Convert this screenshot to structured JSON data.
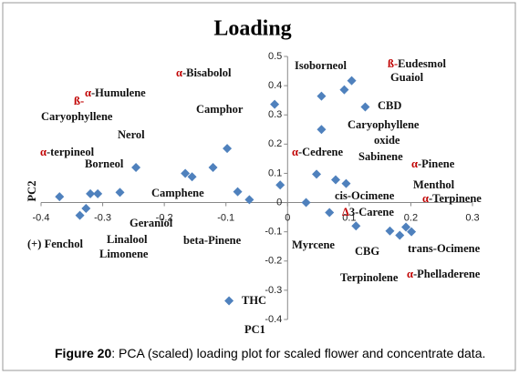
{
  "chart_data": {
    "type": "scatter",
    "title": "Loading",
    "xlabel": "PC1",
    "ylabel": "PC2",
    "x": [
      -0.37,
      -0.337,
      -0.327,
      -0.32,
      -0.308,
      -0.272,
      -0.246,
      -0.166,
      -0.155,
      -0.121,
      -0.098,
      -0.081,
      -0.062,
      -0.021,
      -0.012,
      -0.095,
      0.03,
      0.047,
      0.055,
      0.055,
      0.068,
      0.078,
      0.092,
      0.095,
      0.104,
      0.111,
      0.126,
      0.166,
      0.182,
      0.192,
      0.201
    ],
    "series": [
      {
        "color": "#4f81bd",
        "values": [
          0.02,
          -0.044,
          -0.02,
          0.03,
          0.03,
          0.035,
          0.12,
          0.1,
          0.088,
          0.12,
          0.185,
          0.037,
          0.01,
          0.336,
          0.06,
          -0.336,
          0.0,
          0.097,
          0.364,
          0.25,
          -0.034,
          0.078,
          0.386,
          0.065,
          0.417,
          -0.08,
          0.327,
          -0.097,
          -0.112,
          -0.084,
          -0.1
        ]
      }
    ],
    "xlim": [
      -0.4,
      0.3
    ],
    "ylim": [
      -0.4,
      0.5
    ],
    "xticks": [
      -0.4,
      -0.3,
      -0.2,
      -0.1,
      0,
      0.1,
      0.2,
      0.3
    ],
    "yticks": [
      -0.4,
      -0.3,
      -0.2,
      -0.1,
      0,
      0.1,
      0.2,
      0.3,
      0.4,
      0.5
    ],
    "prefix_color": "#c00000",
    "annotations": [
      {
        "text": "Isoborneol"
      },
      {
        "prefix": "ß-",
        "text": "Eudesmol"
      },
      {
        "text": "Guaiol"
      },
      {
        "prefix": "α",
        "text": "-Bisabolol"
      },
      {
        "prefix": "α",
        "text": "-Humulene"
      },
      {
        "prefix": "ß-"
      },
      {
        "text": "Caryophyllene"
      },
      {
        "text": "Camphor"
      },
      {
        "text": "CBD"
      },
      {
        "text": "Caryophyllene"
      },
      {
        "text": "oxide"
      },
      {
        "text": "Nerol"
      },
      {
        "prefix": "α",
        "text": "-terpineol"
      },
      {
        "prefix": "α",
        "text": "-Cedrene"
      },
      {
        "text": "Borneol"
      },
      {
        "text": "Sabinene"
      },
      {
        "prefix": "α",
        "text": "-Pinene"
      },
      {
        "text": "Menthol"
      },
      {
        "text": "Camphene"
      },
      {
        "text": "cis-Ocimene"
      },
      {
        "prefix": "α",
        "text": "-Terpinene"
      },
      {
        "text": "Geraniol"
      },
      {
        "prefix": "Δ",
        "text": "3-Carene"
      },
      {
        "text": "(+) Fenchol"
      },
      {
        "text": "Linalool"
      },
      {
        "text": "Limonene"
      },
      {
        "text": "beta-Pinene"
      },
      {
        "text": "Myrcene"
      },
      {
        "text": "CBG"
      },
      {
        "text": "trans-Ocimene"
      },
      {
        "text": "Terpinolene"
      },
      {
        "prefix": "α",
        "text": "-Phelladerene"
      },
      {
        "text": "THC"
      }
    ],
    "caption_label": "Figure 20",
    "caption_text": ": PCA (scaled) loading plot for scaled flower and concentrate data."
  }
}
